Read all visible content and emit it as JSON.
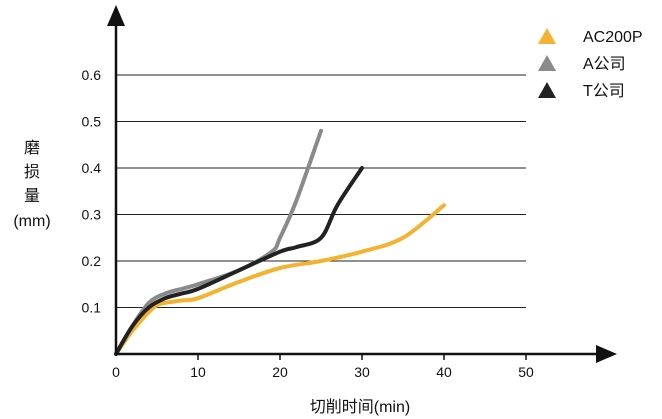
{
  "chart_data": {
    "type": "line",
    "xlabel": "切削时间(min)",
    "ylabel_lines": [
      "磨",
      "损",
      "量",
      "(mm)"
    ],
    "xlim": [
      0,
      50
    ],
    "ylim": [
      0,
      0.6
    ],
    "x_ticks": [
      "0",
      "10",
      "20",
      "30",
      "40",
      "50"
    ],
    "y_ticks": [
      "0.1",
      "0.2",
      "0.3",
      "0.4",
      "0.5",
      "0.6"
    ],
    "grid": "horizontal",
    "legend_position": "top-right",
    "series": [
      {
        "name": "AC200P",
        "color": "#f5b22e",
        "x": [
          0,
          2,
          4,
          5,
          6,
          8,
          10,
          15,
          20,
          25,
          30,
          35,
          40
        ],
        "y": [
          0,
          0.05,
          0.09,
          0.105,
          0.11,
          0.115,
          0.12,
          0.155,
          0.185,
          0.2,
          0.22,
          0.25,
          0.32
        ]
      },
      {
        "name": "A公司",
        "color": "#8a8a8c",
        "x": [
          0,
          2,
          4,
          6,
          8,
          10,
          15,
          19,
          20,
          22,
          25
        ],
        "y": [
          0,
          0.06,
          0.11,
          0.13,
          0.14,
          0.15,
          0.18,
          0.22,
          0.25,
          0.33,
          0.48
        ]
      },
      {
        "name": "T公司",
        "color": "#222222",
        "x": [
          0,
          2,
          4,
          6,
          8,
          10,
          15,
          20,
          22,
          25,
          27,
          30
        ],
        "y": [
          0,
          0.06,
          0.1,
          0.12,
          0.13,
          0.14,
          0.18,
          0.22,
          0.23,
          0.25,
          0.32,
          0.4
        ]
      }
    ]
  }
}
